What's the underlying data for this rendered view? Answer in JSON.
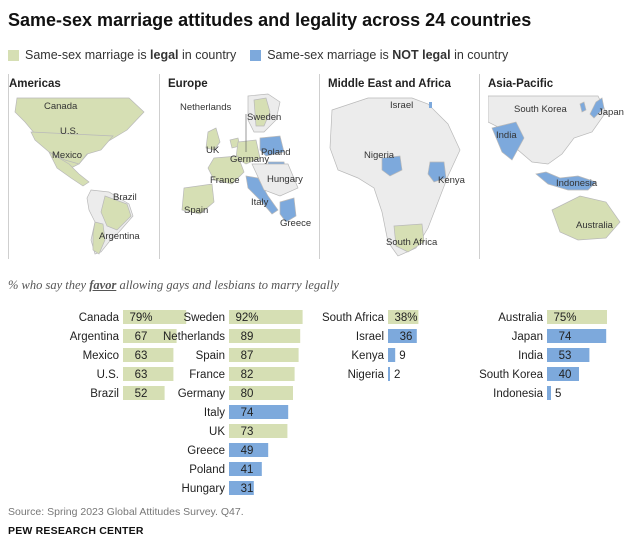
{
  "title": "Same-sex marriage attitudes and legality across 24 countries",
  "legend": {
    "legal_pre": "Same-sex marriage is ",
    "legal_bold": "legal",
    "legal_post": " in country",
    "notlegal_pre": "Same-sex marriage is ",
    "notlegal_bold": "NOT legal",
    "notlegal_post": " in country"
  },
  "colors": {
    "legal": "#d6dfb4",
    "not_legal": "#7da9dc",
    "land": "#ececec",
    "outline": "#b9b9b9"
  },
  "regions": {
    "americas": {
      "title": "Americas",
      "labels": [
        "Canada",
        "U.S.",
        "Mexico",
        "Brazil",
        "Argentina"
      ]
    },
    "europe": {
      "title": "Europe",
      "labels": [
        "Netherlands",
        "Sweden",
        "UK",
        "Poland",
        "Germany",
        "France",
        "Hungary",
        "Spain",
        "Italy",
        "Greece"
      ]
    },
    "mea": {
      "title": "Middle East and Africa",
      "labels": [
        "Israel",
        "Nigeria",
        "Kenya",
        "South Africa"
      ]
    },
    "asia": {
      "title": "Asia-Pacific",
      "labels": [
        "South Korea",
        "Japan",
        "India",
        "Indonesia",
        "Australia"
      ]
    }
  },
  "subtitle": {
    "pre": "% who say they ",
    "favor": "favor",
    "post": " allowing gays and lesbians to marry legally"
  },
  "chart_data": {
    "type": "bar",
    "groups": [
      {
        "region": "Americas",
        "categories": [
          "Canada",
          "Argentina",
          "Mexico",
          "U.S.",
          "Brazil"
        ],
        "values": [
          79,
          67,
          63,
          63,
          52
        ],
        "labels": [
          "79%",
          "67",
          "63",
          "63",
          "52"
        ],
        "legal": [
          true,
          true,
          true,
          true,
          true
        ]
      },
      {
        "region": "Europe",
        "categories": [
          "Sweden",
          "Netherlands",
          "Spain",
          "France",
          "Germany",
          "Italy",
          "UK",
          "Greece",
          "Poland",
          "Hungary"
        ],
        "values": [
          92,
          89,
          87,
          82,
          80,
          74,
          73,
          49,
          41,
          31
        ],
        "labels": [
          "92%",
          "89",
          "87",
          "82",
          "80",
          "74",
          "73",
          "49",
          "41",
          "31"
        ],
        "legal": [
          true,
          true,
          true,
          true,
          true,
          false,
          true,
          false,
          false,
          false
        ]
      },
      {
        "region": "Middle East and Africa",
        "categories": [
          "South Africa",
          "Israel",
          "Kenya",
          "Nigeria"
        ],
        "values": [
          38,
          36,
          9,
          2
        ],
        "labels": [
          "38%",
          "36",
          "9",
          "2"
        ],
        "legal": [
          true,
          false,
          false,
          false
        ]
      },
      {
        "region": "Asia-Pacific",
        "categories": [
          "Australia",
          "Japan",
          "India",
          "South Korea",
          "Indonesia"
        ],
        "values": [
          75,
          74,
          53,
          40,
          5
        ],
        "labels": [
          "75%",
          "74",
          "53",
          "40",
          "5"
        ],
        "legal": [
          true,
          false,
          false,
          false,
          false
        ]
      }
    ]
  },
  "source": "Source: Spring 2023 Global Attitudes Survey. Q47.",
  "org": "PEW RESEARCH CENTER"
}
